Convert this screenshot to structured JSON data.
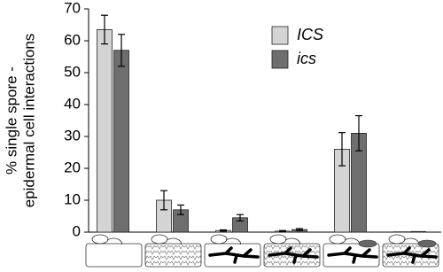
{
  "chart_data": {
    "type": "bar",
    "ylabel": [
      "% single spore -",
      "epidermal cell interactions"
    ],
    "categories": [
      null,
      null,
      null,
      null,
      null,
      null
    ],
    "series": [
      {
        "name": "ICS",
        "color": "#d4d4d4",
        "values": [
          63.5,
          10,
          0.5,
          0.3,
          26,
          0.1
        ],
        "errors": [
          4.5,
          3,
          0.2,
          0.2,
          5.2,
          0
        ]
      },
      {
        "name": "ics",
        "color": "#6e6e6e",
        "values": [
          57,
          7,
          4.5,
          0.8,
          31,
          0.2
        ],
        "errors": [
          5,
          1.5,
          1,
          0.3,
          5.5,
          0
        ]
      }
    ],
    "ylim": [
      0,
      70
    ],
    "yticks": [
      0,
      10,
      20,
      30,
      40,
      50,
      60,
      70
    ],
    "grid": false
  }
}
